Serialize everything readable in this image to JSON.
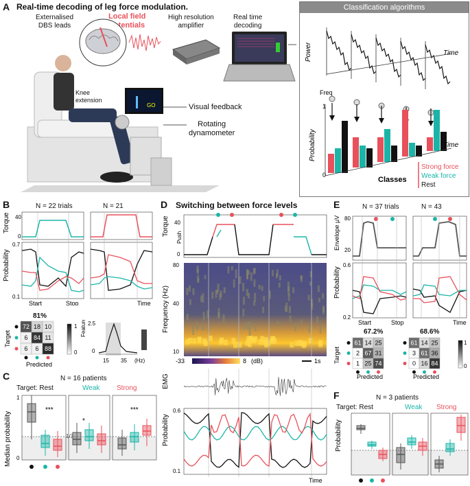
{
  "panelA": {
    "letter": "A",
    "title": "Real-time decoding of leg force modulation.",
    "labels": {
      "leads": "Externalised\nDBS leads",
      "lfp": "Local field\npotentials",
      "amp": "High resolution\namplifier",
      "decode": "Real time\ndecoding",
      "knee": "Knee\nextension",
      "visual": "Visual feedback",
      "dyn": "Rotating\ndynamometer",
      "screen_text": "GO"
    },
    "classif": {
      "header": "Classification algorithms",
      "power": "Power",
      "time": "Time",
      "freq": "Freq",
      "prob": "Probability",
      "time2": "Time",
      "tick0": "0",
      "tick1": "1",
      "classes_label": "Classes",
      "class_strong": "Strong force",
      "class_weak": "Weak force",
      "class_rest": "Rest"
    }
  },
  "panelB": {
    "letter": "B",
    "n1": "N = 22 trials",
    "n2": "N = 21",
    "torque": "Torque",
    "prob": "Probability",
    "t40": "40",
    "t0": "0",
    "p07": "0.7",
    "p01": "0.1",
    "start": "Start",
    "stop": "Stop",
    "time": "Time",
    "acc": "81%",
    "target": "Target",
    "predicted": "Predicted",
    "cm": [
      [
        72,
        18,
        10
      ],
      [
        6,
        84,
        11
      ],
      [
        6,
        6,
        88
      ]
    ],
    "cb1": "1",
    "cb0": "0",
    "feat": "Feature\nimportance\n(%)",
    "f25": "2.5",
    "f0": "0",
    "x15": "15",
    "x35": "35",
    "hz": "(Hz)"
  },
  "panelC": {
    "letter": "C",
    "n": "N = 16 patients",
    "target_rest": "Target: Rest",
    "weak": "Weak",
    "strong": "Strong",
    "ylabel": "Median probability",
    "y1": "1",
    "y0": "0",
    "third": "1/3",
    "sig1": "***",
    "sig2": "*",
    "sig3": "***"
  },
  "panelD": {
    "letter": "D",
    "title": "Switching between force levels",
    "torque": "Torque",
    "push": "Push",
    "t40": "40",
    "t0": "0",
    "freq": "Frequency (Hz)",
    "f80": "80",
    "f40": "40",
    "f10": "10",
    "cbmin": "-33",
    "cbmax": "8",
    "cbunit": "(dB)",
    "scale": "1s",
    "emg": "EMG",
    "prob": "Probability",
    "p06": "0.6",
    "p01": "0.1",
    "time": "Time"
  },
  "panelE": {
    "letter": "E",
    "n1": "N = 37 trials",
    "n2": "N = 43",
    "env": "Envelope\nμV",
    "e80": "80",
    "e20": "20",
    "prob": "Probability",
    "p06": "0.6",
    "p02": "0.2",
    "start": "Start",
    "stop": "Stop",
    "time": "Time",
    "acc1": "67.2%",
    "acc2": "68.6%",
    "target": "Target",
    "predicted": "Predicted",
    "cm1": [
      [
        61,
        14,
        25
      ],
      [
        2,
        67,
        31
      ],
      [
        1,
        25,
        74
      ]
    ],
    "cm2": [
      [
        61,
        14,
        25
      ],
      [
        3,
        61,
        36
      ],
      [
        0,
        16,
        84
      ]
    ],
    "cb1": "1",
    "cb0": "0"
  },
  "panelF": {
    "letter": "F",
    "n": "N = 3 patients",
    "target_rest": "Target: Rest",
    "weak": "Weak",
    "strong": "Strong",
    "ylabel": "Probability"
  },
  "colors": {
    "rest": "#111111",
    "weak": "#1bb5a8",
    "strong": "#e8505b"
  }
}
